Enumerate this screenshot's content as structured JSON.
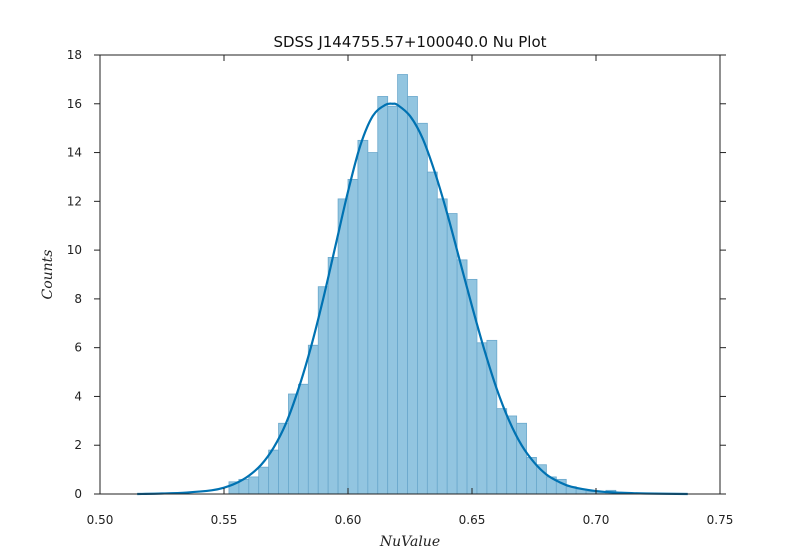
{
  "chart_data": {
    "type": "bar",
    "title": "SDSS J144755.57+100040.0 Nu Plot",
    "xlabel": "NuValue",
    "ylabel": "Counts",
    "xlim": [
      0.5,
      0.75
    ],
    "ylim": [
      0,
      18
    ],
    "xticks": [
      0.5,
      0.55,
      0.6,
      0.65,
      0.7,
      0.75
    ],
    "xtick_labels": [
      "0.50",
      "0.55",
      "0.60",
      "0.65",
      "0.70",
      "0.75"
    ],
    "yticks": [
      0,
      2,
      4,
      6,
      8,
      10,
      12,
      14,
      16,
      18
    ],
    "ytick_labels": [
      "0",
      "2",
      "4",
      "6",
      "8",
      "10",
      "12",
      "14",
      "16",
      "18"
    ],
    "grid": false,
    "bin_width": 0.004,
    "series": [
      {
        "kind": "histogram",
        "color": "#92c5e0",
        "edge_color": "#6aa8cc",
        "bin_starts": [
          0.552,
          0.556,
          0.56,
          0.564,
          0.568,
          0.572,
          0.576,
          0.58,
          0.584,
          0.588,
          0.592,
          0.596,
          0.6,
          0.604,
          0.608,
          0.612,
          0.616,
          0.62,
          0.624,
          0.628,
          0.632,
          0.636,
          0.64,
          0.644,
          0.648,
          0.652,
          0.656,
          0.66,
          0.664,
          0.668,
          0.672,
          0.676,
          0.68,
          0.684,
          0.688,
          0.692,
          0.696,
          0.7,
          0.704
        ],
        "counts": [
          0.5,
          0.6,
          0.7,
          1.1,
          1.8,
          2.9,
          4.1,
          4.5,
          6.1,
          8.5,
          9.7,
          12.1,
          12.9,
          14.5,
          14.0,
          16.3,
          15.9,
          17.2,
          16.3,
          15.2,
          13.2,
          12.1,
          11.5,
          9.6,
          8.8,
          6.2,
          6.3,
          3.5,
          3.2,
          2.9,
          1.5,
          1.2,
          0.7,
          0.6,
          0.3,
          0.2,
          0.1,
          0.1,
          0.15
        ]
      },
      {
        "kind": "kde",
        "color": "#0072b2",
        "x": [
          0.515,
          0.525,
          0.535,
          0.545,
          0.55,
          0.555,
          0.56,
          0.565,
          0.57,
          0.575,
          0.58,
          0.585,
          0.59,
          0.595,
          0.6,
          0.605,
          0.61,
          0.615,
          0.618,
          0.62,
          0.625,
          0.63,
          0.635,
          0.64,
          0.645,
          0.65,
          0.655,
          0.66,
          0.665,
          0.67,
          0.675,
          0.68,
          0.685,
          0.69,
          0.7,
          0.71,
          0.72,
          0.737
        ],
        "y": [
          0.0,
          0.02,
          0.06,
          0.15,
          0.26,
          0.45,
          0.75,
          1.2,
          1.9,
          2.9,
          4.3,
          6.0,
          8.0,
          10.2,
          12.4,
          14.3,
          15.5,
          15.95,
          16.0,
          15.95,
          15.5,
          14.6,
          13.2,
          11.5,
          9.6,
          7.7,
          5.9,
          4.3,
          3.0,
          2.0,
          1.3,
          0.8,
          0.5,
          0.3,
          0.12,
          0.05,
          0.02,
          0.0
        ]
      }
    ]
  }
}
